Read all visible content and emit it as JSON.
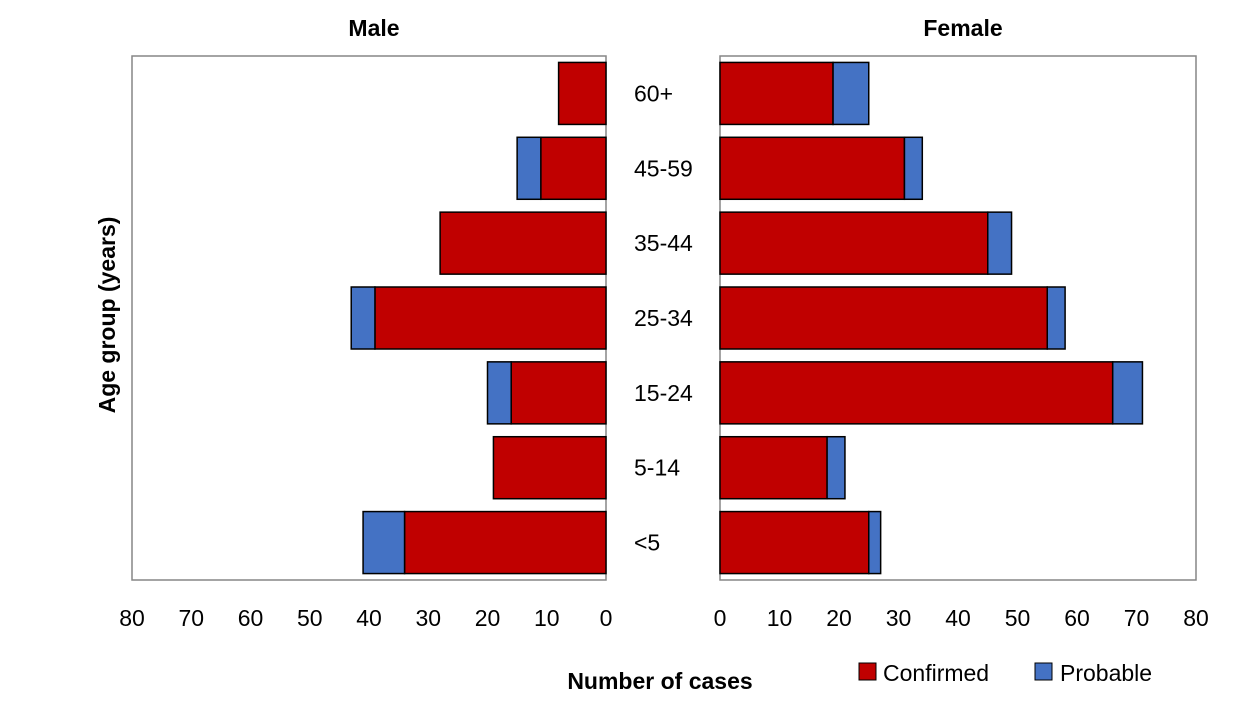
{
  "chart_data": {
    "type": "bar",
    "orientation": "horizontal",
    "stacked": true,
    "layout": "population-pyramid",
    "categories": [
      "60+",
      "45-59",
      "35-44",
      "25-34",
      "15-24",
      "5-14",
      "<5"
    ],
    "xlabel": "Number of cases",
    "ylabel": "Age group (years)",
    "xlim": [
      0,
      80
    ],
    "xticks": [
      0,
      10,
      20,
      30,
      40,
      50,
      60,
      70,
      80
    ],
    "grid": false,
    "legend": {
      "position": "bottom-right",
      "entries": [
        "Confirmed",
        "Probable"
      ]
    },
    "colors": {
      "Confirmed": "#C00000",
      "Probable": "#4472C4"
    },
    "panels": [
      {
        "title": "Male",
        "direction": "reversed",
        "series": [
          {
            "name": "Confirmed",
            "values": [
              8,
              11,
              28,
              39,
              16,
              19,
              34
            ]
          },
          {
            "name": "Probable",
            "values": [
              0,
              4,
              0,
              4,
              4,
              0,
              7
            ]
          }
        ]
      },
      {
        "title": "Female",
        "direction": "normal",
        "series": [
          {
            "name": "Confirmed",
            "values": [
              19,
              31,
              45,
              55,
              66,
              18,
              25
            ]
          },
          {
            "name": "Probable",
            "values": [
              6,
              3,
              4,
              3,
              5,
              3,
              2
            ]
          }
        ]
      }
    ]
  }
}
